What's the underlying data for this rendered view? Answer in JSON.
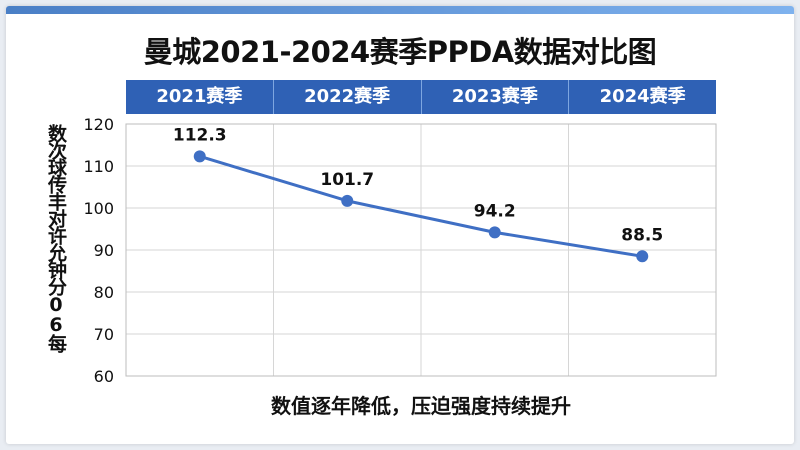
{
  "title": "曼城2021-2024赛季PPDA数据对比图",
  "caption": "数值逐年降低，压迫强度持续提升",
  "colors": {
    "line": "#3f6fc4",
    "header": "#2f61b5",
    "grid": "#d6d6d6"
  },
  "chart_data": {
    "type": "line",
    "categories": [
      "2021赛季",
      "2022赛季",
      "2023赛季",
      "2024赛季"
    ],
    "series": [
      {
        "values": [
          112.3,
          101.7,
          94.2,
          88.5
        ]
      }
    ],
    "data_labels": [
      "112.3",
      "101.7",
      "94.2",
      "88.5"
    ],
    "title": "曼城2021-2024赛季PPDA数据对比图",
    "xlabel": "",
    "ylabel": "数次球传丰对许允钟分06每",
    "ylim": [
      60,
      120
    ],
    "yticks": [
      60,
      70,
      80,
      90,
      100,
      110,
      120
    ],
    "ytick_labels": [
      "60",
      "70",
      "80",
      "90",
      "100",
      "110",
      "120"
    ],
    "grid": true,
    "legend": "none"
  }
}
